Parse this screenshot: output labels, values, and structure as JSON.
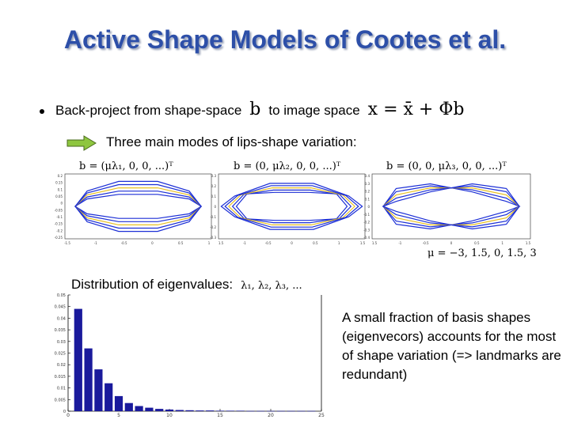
{
  "slide": {
    "title": "Active Shape Models of Cootes et al.",
    "bullet": {
      "text_before": "Back-project from shape-space",
      "b_symbol": "b",
      "text_middle": "to image space",
      "equation": "x = x̄ + Φb"
    },
    "arrow_text": "Three main modes of lips-shape variation:",
    "modes": [
      {
        "label": "b = (μλ₁, 0, 0, ...)ᵀ",
        "yticks": [
          "0.2",
          "0.15",
          "0.1",
          "0.05",
          "0",
          "-0.05",
          "-0.1",
          "-0.15",
          "-0.2",
          "-0.25"
        ],
        "xticks": [
          "-1.5",
          "-1",
          "-0.5",
          "0",
          "0.5",
          "1"
        ]
      },
      {
        "label": "b = (0, μλ₂, 0, 0, ...)ᵀ",
        "yticks": [
          "0.3",
          "0.2",
          "0.1",
          "0",
          "-0.1",
          "-0.2",
          "-0.3"
        ],
        "xticks": [
          "1.5",
          "-1",
          "-0.5",
          "0",
          "0.5",
          "1",
          "1.5"
        ]
      },
      {
        "label": "b = (0, 0, μλ₃, 0, 0, ...)ᵀ",
        "yticks": [
          "0.4",
          "0.3",
          "0.2",
          "0.1",
          "0",
          "-0.1",
          "-0.2",
          "-0.3",
          "-0.4"
        ],
        "xticks": [
          "1.5",
          "-1",
          "-0.5",
          "0",
          "0.5",
          "1",
          "1.5"
        ]
      }
    ],
    "mu_values": "μ = −3, 1.5, 0, 1.5, 3",
    "distribution_label": "Distribution of eigenvalues:",
    "eigen_symbols": "λ₁, λ₂, λ₃, ...",
    "description": "A small fraction of basis shapes (eigenvecors) accounts for the most of shape variation (=> landmarks are redundant)",
    "arrow_color": "#8ec63f",
    "title_color": "#2d4fa8"
  },
  "chart_data": {
    "type": "bar",
    "x": [
      1,
      2,
      3,
      4,
      5,
      6,
      7,
      8,
      9,
      10,
      11,
      12,
      13,
      14,
      15,
      16,
      17,
      18,
      19,
      20,
      21,
      22,
      23,
      24
    ],
    "values": [
      0.044,
      0.027,
      0.018,
      0.012,
      0.0065,
      0.0035,
      0.0022,
      0.0015,
      0.001,
      0.0007,
      0.0005,
      0.0004,
      0.0003,
      0.0003,
      0.0002,
      0.0002,
      0.0002,
      0.0001,
      0.0001,
      0.0001,
      0.0001,
      0.0001,
      0.0001,
      0.0001
    ],
    "xticks": [
      "0",
      "5",
      "10",
      "15",
      "20",
      "25"
    ],
    "xtick_values": [
      0,
      5,
      10,
      15,
      20,
      25
    ],
    "yticks": [
      "0.05",
      "0.045",
      "0.04",
      "0.035",
      "0.03",
      "0.025",
      "0.02",
      "0.015",
      "0.01",
      "0.005",
      "0"
    ],
    "ytick_values": [
      0.05,
      0.045,
      0.04,
      0.035,
      0.03,
      0.025,
      0.02,
      0.015,
      0.01,
      0.005,
      0
    ],
    "xlim": [
      0,
      25
    ],
    "ylim": [
      0,
      0.05
    ],
    "grid": false,
    "bar_color": "#1a1a9c"
  }
}
